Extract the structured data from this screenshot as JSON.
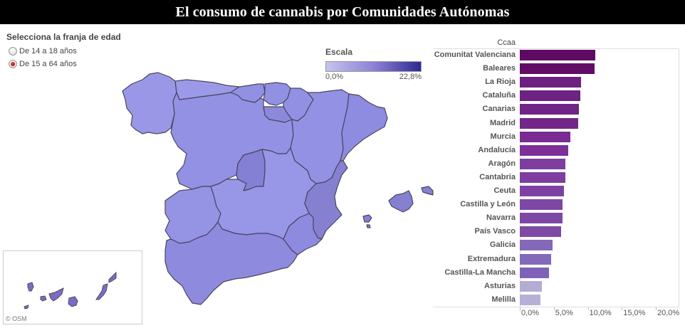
{
  "header": {
    "title": "El consumo de cannabis por Comunidades Autónomas"
  },
  "filter": {
    "title": "Selecciona la franja de edad",
    "options": [
      {
        "label": "De 14 a 18 años",
        "selected": false
      },
      {
        "label": "De 15 a 64 años",
        "selected": true
      }
    ]
  },
  "legend": {
    "title": "Escala",
    "min_label": "0,0%",
    "max_label": "22,8%",
    "color_low": "#c5c3ee",
    "color_high": "#2e2a93"
  },
  "map": {
    "attribution": "© OSM",
    "fill_color": "#9391e3",
    "border_color": "#4a4560"
  },
  "chart_data": {
    "type": "bar",
    "orientation": "horizontal",
    "title": "",
    "ylabel": "Ccaa",
    "xlabel": "",
    "categories": [
      "Comunitat Valenciana",
      "Baleares",
      "La Rioja",
      "Cataluña",
      "Canarias",
      "Madrid",
      "Murcia",
      "Andalucía",
      "Aragón",
      "Cantabria",
      "Ceuta",
      "Castilla y León",
      "Navarra",
      "País Vasco",
      "Galicia",
      "Extremadura",
      "Castilla-La Mancha",
      "Asturias",
      "Melilla"
    ],
    "values": [
      11.1,
      11.0,
      9.0,
      8.9,
      8.7,
      8.6,
      7.4,
      7.1,
      6.7,
      6.7,
      6.5,
      6.3,
      6.3,
      6.1,
      4.8,
      4.6,
      4.3,
      3.2,
      3.0
    ],
    "colors": [
      "#5e0a62",
      "#620c66",
      "#6d2080",
      "#6e2282",
      "#702486",
      "#722688",
      "#7a2b93",
      "#7d2f97",
      "#7d3e9f",
      "#7d3e9f",
      "#7d42a1",
      "#7c47a5",
      "#7c47a5",
      "#7e4aa5",
      "#8468b9",
      "#8468b9",
      "#7f62b7",
      "#b5acd5",
      "#b7b0d6"
    ],
    "x_ticks": [
      "0,0%",
      "5,0%",
      "10,0%",
      "15,0%",
      "20,0%"
    ],
    "x_tick_values": [
      0,
      5,
      10,
      15,
      20
    ],
    "xlim": [
      0,
      23.5
    ],
    "grid": false,
    "legend_position": "none"
  }
}
